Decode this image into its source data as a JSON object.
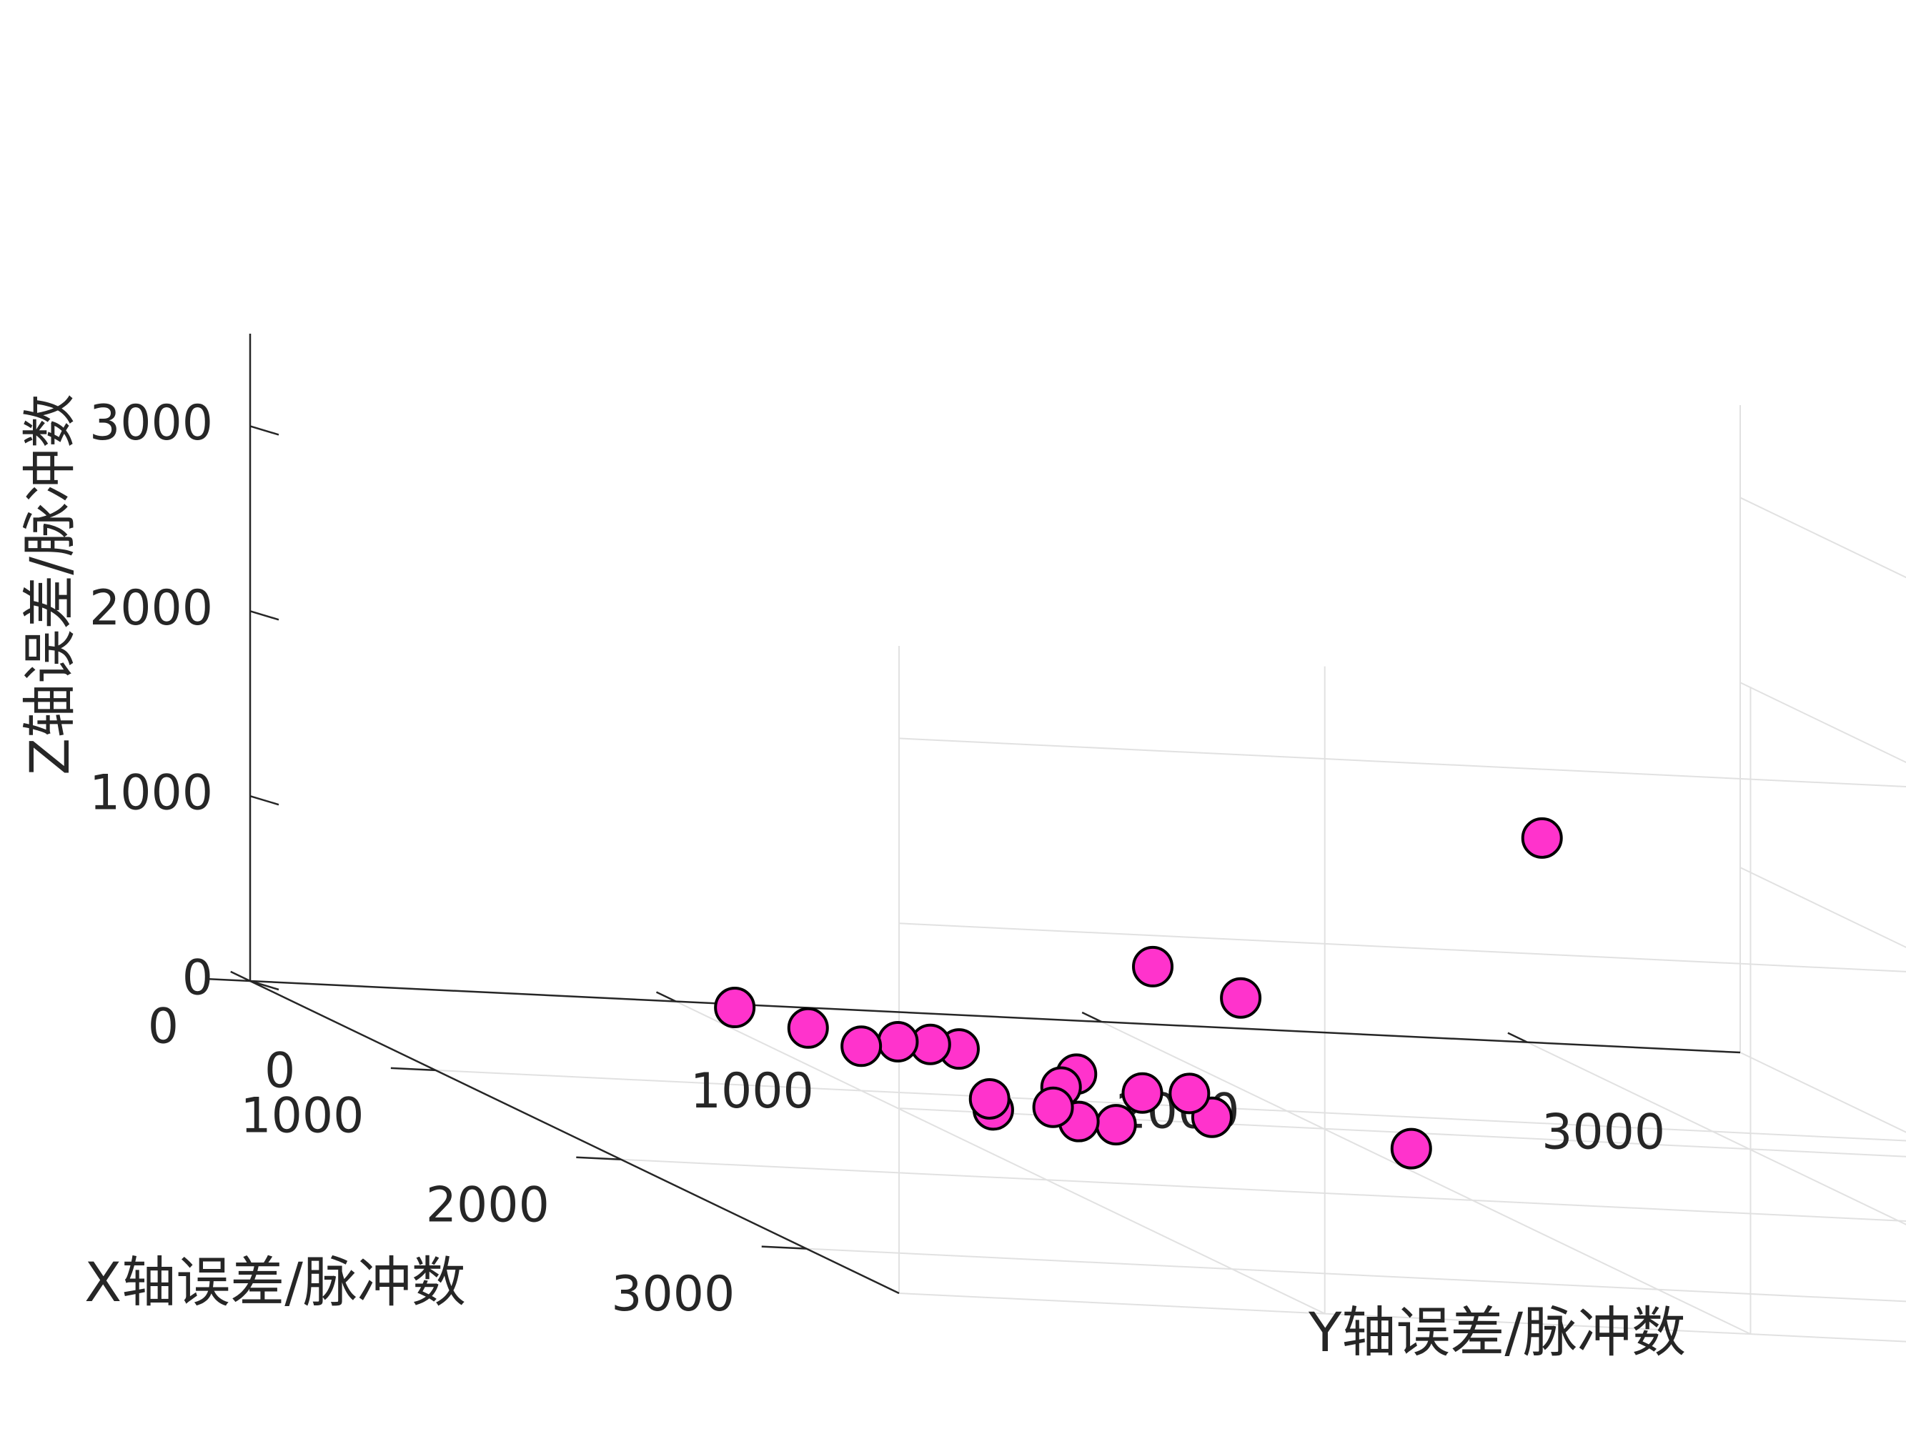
{
  "chart_data": {
    "type": "scatter",
    "projection": "3d",
    "title": "",
    "xlabel": "X轴误差/脉冲数",
    "ylabel": "Y轴误差/脉冲数",
    "zlabel": "Z轴误差/脉冲数",
    "xlim": [
      0,
      3500
    ],
    "ylim": [
      0,
      3500
    ],
    "zlim": [
      0,
      3500
    ],
    "xticks": [
      0,
      1000,
      2000,
      3000
    ],
    "yticks": [
      0,
      1000,
      2000,
      3000
    ],
    "zticks": [
      0,
      1000,
      2000,
      3000
    ],
    "xtick_labels": [
      "0",
      "1000",
      "2000",
      "3000"
    ],
    "ytick_labels": [
      "0",
      "1000",
      "2000",
      "3000"
    ],
    "ztick_labels": [
      "0",
      "1000",
      "2000",
      "3000"
    ],
    "grid": true,
    "legend": "none",
    "marker": "filled circle",
    "marker_color": "#FF33CC",
    "marker_edge_color": "#000000",
    "points": [
      {
        "x": 1380,
        "y": 1340,
        "z": 310
      },
      {
        "x": 1160,
        "y": 1160,
        "z": 320
      },
      {
        "x": 1120,
        "y": 1110,
        "z": 320
      },
      {
        "x": 1060,
        "y": 1060,
        "z": 300
      },
      {
        "x": 920,
        "y": 910,
        "z": 290
      },
      {
        "x": 800,
        "y": 790,
        "z": 330
      },
      {
        "x": 1460,
        "y": 1460,
        "z": 260
      },
      {
        "x": 1530,
        "y": 1540,
        "z": 300
      },
      {
        "x": 1560,
        "y": 1580,
        "z": 190
      },
      {
        "x": 1320,
        "y": 1330,
        "z": 210
      },
      {
        "x": 1000,
        "y": 1000,
        "z": 240
      },
      {
        "x": 1300,
        "y": 1320,
        "z": 90
      },
      {
        "x": 1900,
        "y": 1900,
        "z": 220
      },
      {
        "x": 1210,
        "y": 1210,
        "z": 80
      },
      {
        "x": 1230,
        "y": 1210,
        "z": 30
      },
      {
        "x": 1410,
        "y": 1420,
        "z": 60
      },
      {
        "x": 1370,
        "y": 1350,
        "z": 50
      },
      {
        "x": 1470,
        "y": 1480,
        "z": 950
      },
      {
        "x": 1600,
        "y": 1630,
        "z": 860
      },
      {
        "x": 2100,
        "y": 2120,
        "z": 2020
      }
    ]
  }
}
